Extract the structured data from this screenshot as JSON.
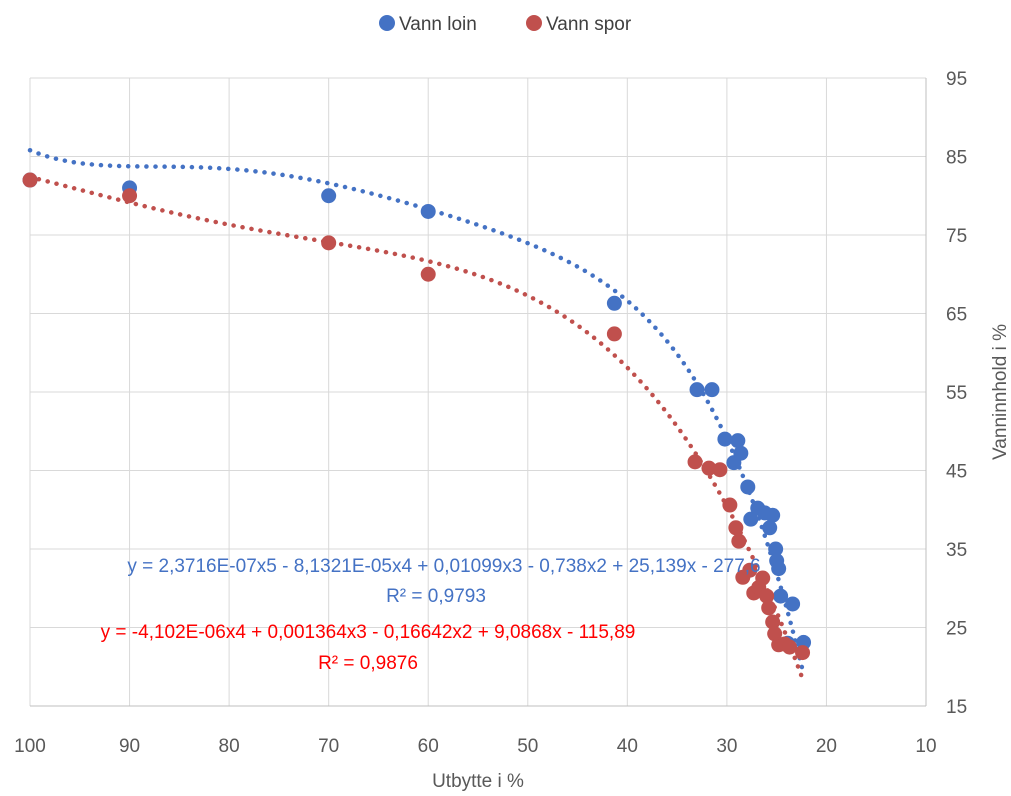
{
  "chart_data": {
    "type": "scatter",
    "xlabel": "Utbytte i %",
    "ylabel": "Vanninnhold i %",
    "xlim": [
      10,
      100
    ],
    "x_reversed": true,
    "x_ticks": [
      100,
      90,
      80,
      70,
      60,
      50,
      40,
      30,
      20,
      10
    ],
    "ylim": [
      15,
      95
    ],
    "y_axis_side": "right",
    "y_ticks": [
      15,
      25,
      35,
      45,
      55,
      65,
      75,
      85,
      95
    ],
    "grid": true,
    "legend": "top-center",
    "series": [
      {
        "name": "Vann loin",
        "color": "#4472C4",
        "points": [
          [
            100,
            82
          ],
          [
            90,
            81
          ],
          [
            70,
            80
          ],
          [
            60,
            78
          ],
          [
            41.3,
            66.3
          ],
          [
            33,
            55.3
          ],
          [
            31.5,
            55.3
          ],
          [
            30.2,
            49
          ],
          [
            29.3,
            46
          ],
          [
            28.9,
            48.8
          ],
          [
            28.6,
            47.2
          ],
          [
            27.9,
            42.9
          ],
          [
            27.6,
            38.8
          ],
          [
            26.9,
            40.2
          ],
          [
            26.2,
            39.6
          ],
          [
            25.7,
            37.7
          ],
          [
            25.4,
            39.3
          ],
          [
            25.1,
            35
          ],
          [
            25,
            33.5
          ],
          [
            24.8,
            32.5
          ],
          [
            24.6,
            29
          ],
          [
            23.4,
            28
          ],
          [
            23.9,
            23
          ],
          [
            22.3,
            23.1
          ]
        ]
      },
      {
        "name": "Vann spor",
        "color": "#C0504D",
        "points": [
          [
            100,
            82
          ],
          [
            90,
            80
          ],
          [
            70,
            74
          ],
          [
            60,
            70
          ],
          [
            41.3,
            62.4
          ],
          [
            33.2,
            46.1
          ],
          [
            31.8,
            45.3
          ],
          [
            30.7,
            45.1
          ],
          [
            29.7,
            40.6
          ],
          [
            29.1,
            37.7
          ],
          [
            28.8,
            36
          ],
          [
            28.4,
            31.4
          ],
          [
            27.7,
            32.3
          ],
          [
            27.3,
            29.4
          ],
          [
            26.8,
            30.1
          ],
          [
            26.4,
            31.3
          ],
          [
            26,
            29
          ],
          [
            25.8,
            27.5
          ],
          [
            25.4,
            25.7
          ],
          [
            25.2,
            24.2
          ],
          [
            24.8,
            22.8
          ],
          [
            24.2,
            22.9
          ],
          [
            23.7,
            22.5
          ],
          [
            22.4,
            21.8
          ]
        ]
      }
    ],
    "trendlines": [
      {
        "series": "Vann loin",
        "type": "polynomial",
        "order": 5,
        "color": "#4472C4",
        "equation": "y = 2,3716E-07x5 - 8,1321E-05x4 + 0,01099x3 - 0,738x2 + 25,139x - 277,6",
        "r2": "R² = 0,9793",
        "coefficients": [
          -277.6,
          25.139,
          -0.738,
          0.01099,
          -8.1321e-05,
          2.3716e-07
        ],
        "x_range": [
          22.3,
          100
        ]
      },
      {
        "series": "Vann spor",
        "type": "polynomial",
        "order": 4,
        "color": "#FF0000",
        "equation": "y = -4,102E-06x4 + 0,001364x3 - 0,16642x2 + 9,0868x - 115,89",
        "r2": "R² = 0,9876",
        "coefficients": [
          -115.89,
          9.0868,
          -0.16642,
          0.001364,
          -4.102e-06
        ],
        "x_range": [
          22.3,
          100
        ]
      }
    ]
  }
}
